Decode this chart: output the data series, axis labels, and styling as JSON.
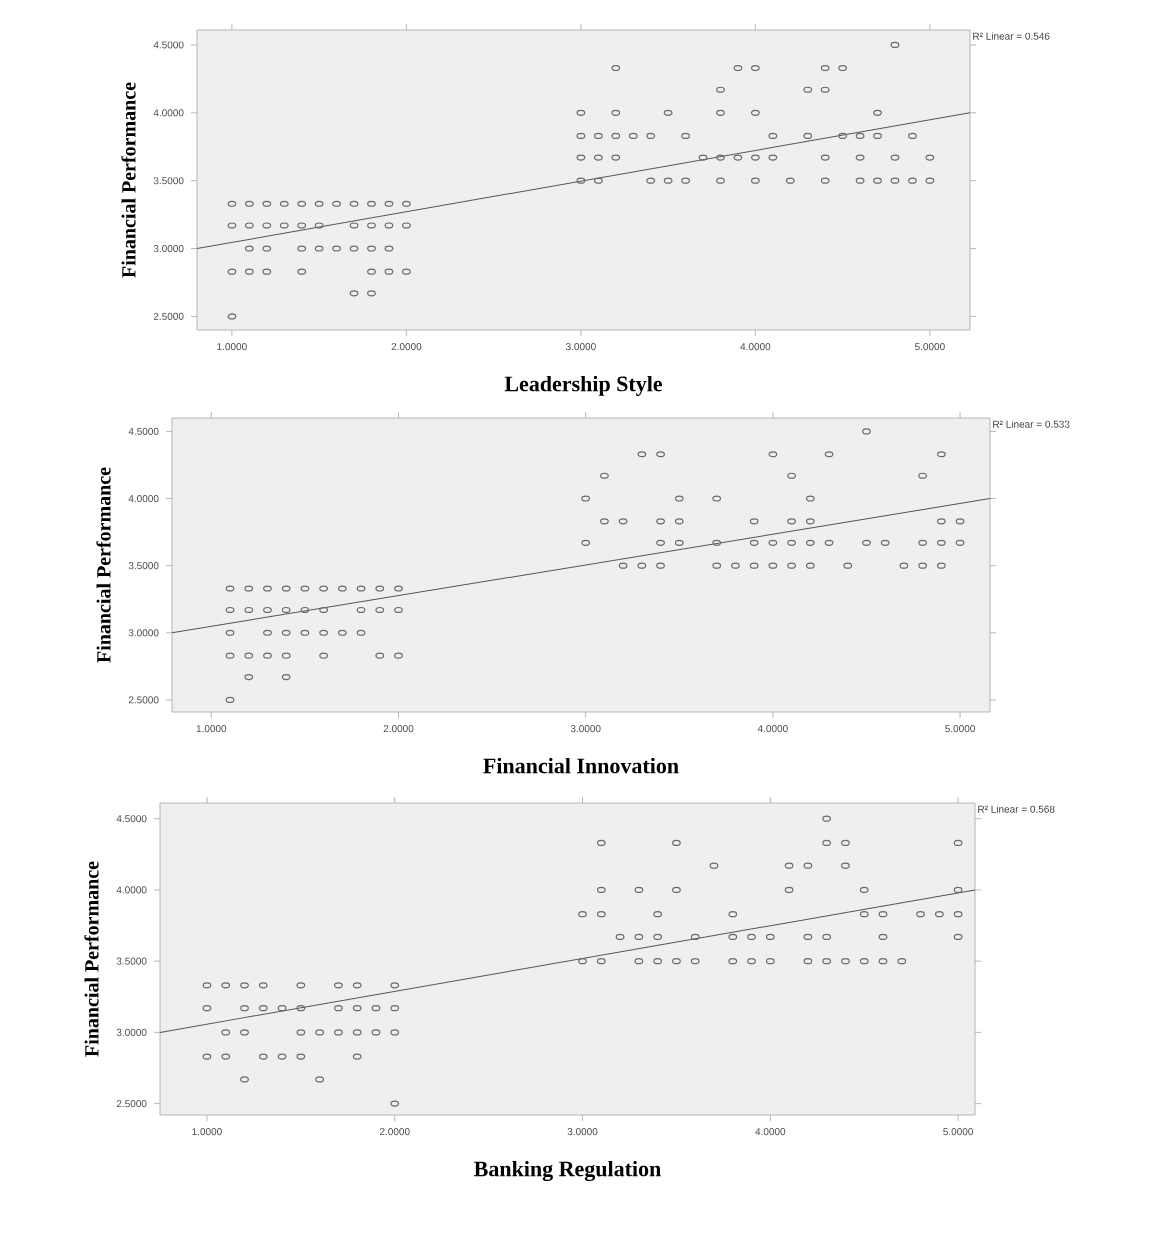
{
  "chart_data": [
    {
      "type": "scatter",
      "xlabel": "Leadership Style",
      "ylabel": "Financial Performance",
      "xlim": [
        0.8,
        5.23
      ],
      "ylim": [
        2.4,
        4.61
      ],
      "xticks": [
        {
          "value": 1,
          "label": "1.0000"
        },
        {
          "value": 2,
          "label": "2.0000"
        },
        {
          "value": 3,
          "label": "3.0000"
        },
        {
          "value": 4,
          "label": "4.0000"
        },
        {
          "value": 5,
          "label": "5.0000"
        }
      ],
      "yticks": [
        {
          "value": 2.5,
          "label": "2.5000"
        },
        {
          "value": 3,
          "label": "3.0000"
        },
        {
          "value": 3.5,
          "label": "3.5000"
        },
        {
          "value": 4,
          "label": "4.0000"
        },
        {
          "value": 4.5,
          "label": "4.5000"
        }
      ],
      "annotations": [
        "R² Linear = 0.546"
      ],
      "series": [
        {
          "marker": "circle",
          "color": "#6b6b6b",
          "x": [
            1.0,
            1.1,
            1.2,
            1.3,
            1.4,
            1.5,
            1.6,
            1.7,
            1.8,
            1.9,
            2.0,
            1.0,
            1.1,
            1.2,
            1.3,
            1.4,
            1.5,
            1.7,
            1.8,
            1.9,
            2.0,
            1.1,
            1.2,
            1.4,
            1.5,
            1.6,
            1.7,
            1.8,
            1.9,
            1.0,
            1.1,
            1.2,
            1.4,
            1.8,
            1.9,
            2.0,
            1.7,
            1.8,
            1.0,
            4.8,
            3.2,
            3.9,
            4.0,
            4.4,
            4.5,
            3.8,
            4.3,
            4.4,
            3.0,
            3.2,
            3.5,
            3.8,
            4.0,
            4.7,
            3.0,
            3.1,
            3.2,
            3.3,
            3.4,
            3.6,
            4.1,
            4.3,
            4.5,
            4.6,
            4.7,
            4.9,
            3.0,
            3.1,
            3.2,
            3.7,
            3.8,
            3.9,
            4.0,
            4.1,
            4.4,
            4.6,
            4.8,
            5.0,
            3.0,
            3.1,
            3.4,
            3.5,
            3.6,
            3.8,
            4.0,
            4.2,
            4.4,
            4.6,
            4.7,
            4.8,
            4.9,
            5.0
          ],
          "values": [
            3.33,
            3.33,
            3.33,
            3.33,
            3.33,
            3.33,
            3.33,
            3.33,
            3.33,
            3.33,
            3.33,
            3.17,
            3.17,
            3.17,
            3.17,
            3.17,
            3.17,
            3.17,
            3.17,
            3.17,
            3.17,
            3.0,
            3.0,
            3.0,
            3.0,
            3.0,
            3.0,
            3.0,
            3.0,
            2.83,
            2.83,
            2.83,
            2.83,
            2.83,
            2.83,
            2.83,
            2.67,
            2.67,
            2.5,
            4.5,
            4.33,
            4.33,
            4.33,
            4.33,
            4.33,
            4.17,
            4.17,
            4.17,
            4.0,
            4.0,
            4.0,
            4.0,
            4.0,
            4.0,
            3.83,
            3.83,
            3.83,
            3.83,
            3.83,
            3.83,
            3.83,
            3.83,
            3.83,
            3.83,
            3.83,
            3.83,
            3.67,
            3.67,
            3.67,
            3.67,
            3.67,
            3.67,
            3.67,
            3.67,
            3.67,
            3.67,
            3.67,
            3.67,
            3.5,
            3.5,
            3.5,
            3.5,
            3.5,
            3.5,
            3.5,
            3.5,
            3.5,
            3.5,
            3.5,
            3.5,
            3.5,
            3.5
          ]
        },
        {
          "type": "line",
          "color": "#555555",
          "x": [
            0.8,
            5.23
          ],
          "values": [
            3.0,
            4.0
          ]
        }
      ]
    },
    {
      "type": "scatter",
      "xlabel": "Financial Innovation",
      "ylabel": "Financial Performance",
      "xlim": [
        0.79,
        5.16
      ],
      "ylim": [
        2.41,
        4.6
      ],
      "xticks": [
        {
          "value": 1,
          "label": "1.0000"
        },
        {
          "value": 2,
          "label": "2.0000"
        },
        {
          "value": 3,
          "label": "3.0000"
        },
        {
          "value": 4,
          "label": "4.0000"
        },
        {
          "value": 5,
          "label": "5.0000"
        }
      ],
      "yticks": [
        {
          "value": 2.5,
          "label": "2.5000"
        },
        {
          "value": 3,
          "label": "3.0000"
        },
        {
          "value": 3.5,
          "label": "3.5000"
        },
        {
          "value": 4,
          "label": "4.0000"
        },
        {
          "value": 4.5,
          "label": "4.5000"
        }
      ],
      "annotations": [
        "R² Linear = 0.533"
      ],
      "series": [
        {
          "marker": "circle",
          "color": "#6b6b6b",
          "x": [
            1.1,
            1.2,
            1.3,
            1.4,
            1.5,
            1.6,
            1.7,
            1.8,
            1.9,
            2.0,
            1.1,
            1.2,
            1.3,
            1.4,
            1.5,
            1.6,
            1.8,
            1.9,
            2.0,
            1.1,
            1.3,
            1.4,
            1.5,
            1.6,
            1.7,
            1.8,
            1.1,
            1.2,
            1.3,
            1.4,
            1.6,
            1.9,
            2.0,
            1.2,
            1.4,
            1.1,
            4.5,
            3.3,
            3.4,
            4.0,
            4.3,
            4.9,
            3.1,
            4.1,
            4.8,
            3.0,
            3.5,
            3.7,
            4.2,
            3.1,
            3.2,
            3.4,
            3.5,
            3.9,
            4.1,
            4.2,
            4.9,
            5.0,
            3.0,
            3.4,
            3.5,
            3.7,
            3.9,
            4.0,
            4.1,
            4.2,
            4.3,
            4.5,
            4.6,
            4.8,
            4.9,
            5.0,
            3.2,
            3.3,
            3.4,
            3.7,
            3.8,
            3.9,
            4.0,
            4.1,
            4.2,
            4.4,
            4.7,
            4.8,
            4.9
          ],
          "values": [
            3.33,
            3.33,
            3.33,
            3.33,
            3.33,
            3.33,
            3.33,
            3.33,
            3.33,
            3.33,
            3.17,
            3.17,
            3.17,
            3.17,
            3.17,
            3.17,
            3.17,
            3.17,
            3.17,
            3.0,
            3.0,
            3.0,
            3.0,
            3.0,
            3.0,
            3.0,
            2.83,
            2.83,
            2.83,
            2.83,
            2.83,
            2.83,
            2.83,
            2.67,
            2.67,
            2.5,
            4.5,
            4.33,
            4.33,
            4.33,
            4.33,
            4.33,
            4.17,
            4.17,
            4.17,
            4.0,
            4.0,
            4.0,
            4.0,
            3.83,
            3.83,
            3.83,
            3.83,
            3.83,
            3.83,
            3.83,
            3.83,
            3.83,
            3.67,
            3.67,
            3.67,
            3.67,
            3.67,
            3.67,
            3.67,
            3.67,
            3.67,
            3.67,
            3.67,
            3.67,
            3.67,
            3.67,
            3.5,
            3.5,
            3.5,
            3.5,
            3.5,
            3.5,
            3.5,
            3.5,
            3.5,
            3.5,
            3.5,
            3.5,
            3.5
          ]
        },
        {
          "type": "line",
          "color": "#555555",
          "x": [
            0.79,
            5.16
          ],
          "values": [
            3.0,
            4.0
          ]
        }
      ]
    },
    {
      "type": "scatter",
      "xlabel": "Banking Regulation",
      "ylabel": "Financial Performance",
      "xlim": [
        0.75,
        5.09
      ],
      "ylim": [
        2.42,
        4.61
      ],
      "xticks": [
        {
          "value": 1,
          "label": "1.0000"
        },
        {
          "value": 2,
          "label": "2.0000"
        },
        {
          "value": 3,
          "label": "3.0000"
        },
        {
          "value": 4,
          "label": "4.0000"
        },
        {
          "value": 5,
          "label": "5.0000"
        }
      ],
      "yticks": [
        {
          "value": 2.5,
          "label": "2.5000"
        },
        {
          "value": 3,
          "label": "3.0000"
        },
        {
          "value": 3.5,
          "label": "3.5000"
        },
        {
          "value": 4,
          "label": "4.0000"
        },
        {
          "value": 4.5,
          "label": "4.5000"
        }
      ],
      "annotations": [
        "R² Linear = 0.568"
      ],
      "series": [
        {
          "marker": "circle",
          "color": "#6b6b6b",
          "x": [
            1.0,
            1.1,
            1.2,
            1.3,
            1.5,
            1.7,
            1.8,
            2.0,
            1.0,
            1.2,
            1.3,
            1.4,
            1.5,
            1.7,
            1.8,
            1.9,
            2.0,
            1.1,
            1.2,
            1.5,
            1.6,
            1.7,
            1.8,
            1.9,
            2.0,
            1.0,
            1.1,
            1.3,
            1.4,
            1.5,
            1.8,
            1.2,
            1.6,
            2.0,
            4.3,
            3.1,
            3.5,
            4.3,
            4.4,
            5.0,
            3.7,
            4.1,
            4.2,
            4.4,
            3.1,
            3.3,
            3.5,
            4.1,
            4.5,
            5.0,
            3.0,
            3.1,
            3.4,
            3.8,
            4.5,
            4.6,
            4.8,
            4.9,
            5.0,
            3.2,
            3.3,
            3.4,
            3.6,
            3.8,
            3.9,
            4.0,
            4.2,
            4.3,
            4.6,
            5.0,
            3.0,
            3.1,
            3.3,
            3.4,
            3.5,
            3.6,
            3.8,
            3.9,
            4.0,
            4.2,
            4.3,
            4.4,
            4.5,
            4.6,
            4.7
          ],
          "values": [
            3.33,
            3.33,
            3.33,
            3.33,
            3.33,
            3.33,
            3.33,
            3.33,
            3.17,
            3.17,
            3.17,
            3.17,
            3.17,
            3.17,
            3.17,
            3.17,
            3.17,
            3.0,
            3.0,
            3.0,
            3.0,
            3.0,
            3.0,
            3.0,
            3.0,
            2.83,
            2.83,
            2.83,
            2.83,
            2.83,
            2.83,
            2.67,
            2.67,
            2.5,
            4.5,
            4.33,
            4.33,
            4.33,
            4.33,
            4.33,
            4.17,
            4.17,
            4.17,
            4.17,
            4.0,
            4.0,
            4.0,
            4.0,
            4.0,
            4.0,
            3.83,
            3.83,
            3.83,
            3.83,
            3.83,
            3.83,
            3.83,
            3.83,
            3.83,
            3.67,
            3.67,
            3.67,
            3.67,
            3.67,
            3.67,
            3.67,
            3.67,
            3.67,
            3.67,
            3.67,
            3.5,
            3.5,
            3.5,
            3.5,
            3.5,
            3.5,
            3.5,
            3.5,
            3.5,
            3.5,
            3.5,
            3.5,
            3.5,
            3.5,
            3.5
          ]
        },
        {
          "type": "line",
          "color": "#555555",
          "x": [
            0.75,
            5.09
          ],
          "values": [
            3.0,
            4.0
          ]
        }
      ]
    }
  ]
}
